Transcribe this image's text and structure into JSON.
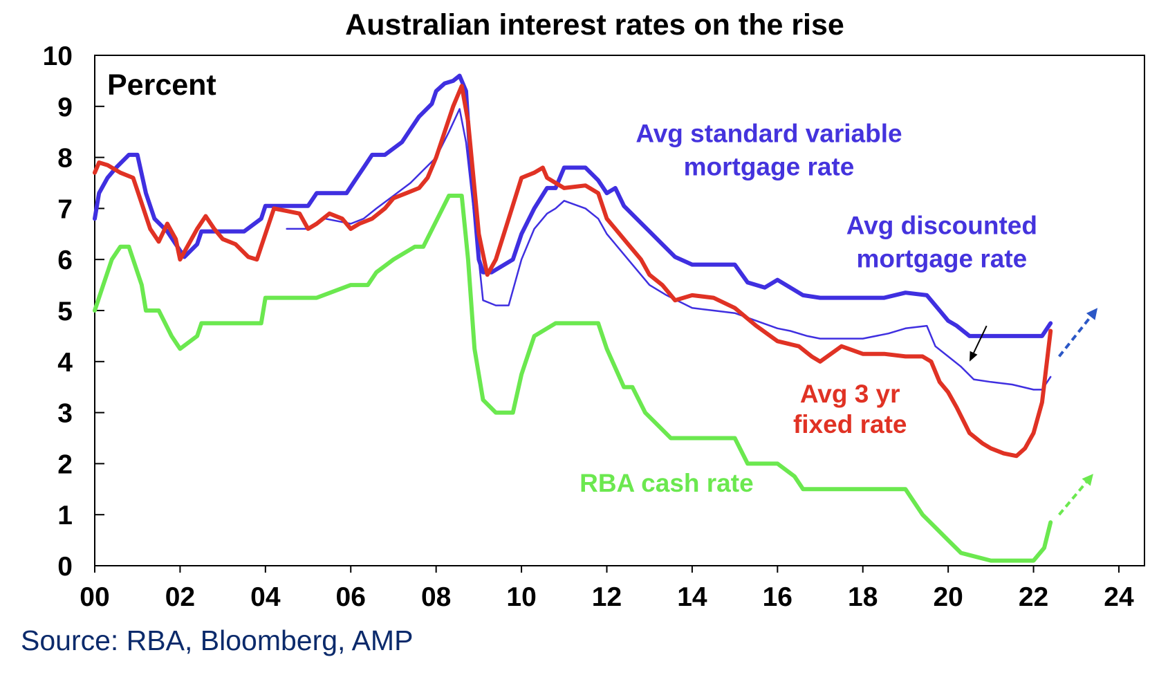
{
  "chart_data": {
    "type": "line",
    "title": "Australian interest rates on the rise",
    "ylabel": "Percent",
    "xlabel": "",
    "xlim": [
      2000,
      2024.6
    ],
    "ylim": [
      0,
      10
    ],
    "x_ticks": [
      2000,
      2002,
      2004,
      2006,
      2008,
      2010,
      2012,
      2014,
      2016,
      2018,
      2020,
      2022,
      2024
    ],
    "x_tick_labels": [
      "00",
      "02",
      "04",
      "06",
      "08",
      "10",
      "12",
      "14",
      "16",
      "18",
      "20",
      "22",
      "24"
    ],
    "y_ticks": [
      0,
      1,
      2,
      3,
      4,
      5,
      6,
      7,
      8,
      9,
      10
    ],
    "y_tick_labels": [
      "0",
      "1",
      "2",
      "3",
      "4",
      "5",
      "6",
      "7",
      "8",
      "9",
      "10"
    ],
    "grid": false,
    "series": [
      {
        "name": "Avg standard variable mortgage rate",
        "color": "#3f2fe0",
        "width": 6,
        "x": [
          2000.0,
          2000.1,
          2000.3,
          2000.5,
          2000.8,
          2001.0,
          2001.2,
          2001.4,
          2001.7,
          2001.9,
          2002.1,
          2002.4,
          2002.5,
          2002.7,
          2003.5,
          2003.9,
          2004.0,
          2005.0,
          2005.2,
          2005.9,
          2006.1,
          2006.3,
          2006.5,
          2006.8,
          2007.2,
          2007.4,
          2007.6,
          2007.9,
          2008.0,
          2008.2,
          2008.4,
          2008.55,
          2008.7,
          2008.8,
          2009.0,
          2009.1,
          2009.3,
          2009.8,
          2010.0,
          2010.3,
          2010.6,
          2010.8,
          2011.0,
          2011.5,
          2011.8,
          2012.0,
          2012.2,
          2012.4,
          2012.7,
          2013.0,
          2013.3,
          2013.6,
          2014.0,
          2014.5,
          2015.0,
          2015.3,
          2015.7,
          2016.0,
          2016.3,
          2016.6,
          2017.0,
          2017.5,
          2018.0,
          2018.5,
          2019.0,
          2019.5,
          2019.8,
          2020.0,
          2020.2,
          2020.5,
          2021.0,
          2021.5,
          2022.0,
          2022.2,
          2022.4
        ],
        "y": [
          6.8,
          7.3,
          7.6,
          7.8,
          8.05,
          8.05,
          7.3,
          6.8,
          6.55,
          6.3,
          6.05,
          6.3,
          6.55,
          6.55,
          6.55,
          6.8,
          7.05,
          7.05,
          7.3,
          7.3,
          7.55,
          7.8,
          8.05,
          8.05,
          8.3,
          8.55,
          8.8,
          9.05,
          9.3,
          9.45,
          9.5,
          9.6,
          9.3,
          8.0,
          6.0,
          5.75,
          5.75,
          6.0,
          6.5,
          7.0,
          7.4,
          7.4,
          7.8,
          7.8,
          7.55,
          7.3,
          7.4,
          7.05,
          6.8,
          6.55,
          6.3,
          6.05,
          5.9,
          5.9,
          5.9,
          5.55,
          5.45,
          5.6,
          5.45,
          5.3,
          5.25,
          5.25,
          5.25,
          5.25,
          5.35,
          5.3,
          5.0,
          4.8,
          4.7,
          4.5,
          4.5,
          4.5,
          4.5,
          4.5,
          4.75
        ]
      },
      {
        "name": "Avg discounted mortgage rate",
        "color": "#3f2fe0",
        "width": 2.5,
        "x": [
          2004.5,
          2005.0,
          2005.4,
          2006.0,
          2006.3,
          2006.6,
          2007.0,
          2007.4,
          2007.7,
          2008.0,
          2008.3,
          2008.55,
          2008.7,
          2008.9,
          2009.1,
          2009.4,
          2009.7,
          2010.0,
          2010.3,
          2010.6,
          2010.8,
          2011.0,
          2011.5,
          2011.8,
          2012.0,
          2012.3,
          2012.6,
          2013.0,
          2013.4,
          2014.0,
          2014.5,
          2015.0,
          2015.5,
          2016.0,
          2016.3,
          2016.7,
          2017.0,
          2018.0,
          2018.6,
          2019.0,
          2019.5,
          2019.7,
          2020.0,
          2020.3,
          2020.6,
          2021.0,
          2021.5,
          2022.0,
          2022.2,
          2022.4
        ],
        "y": [
          6.6,
          6.6,
          6.8,
          6.7,
          6.8,
          7.0,
          7.25,
          7.5,
          7.75,
          8.0,
          8.5,
          8.95,
          8.3,
          6.8,
          5.2,
          5.1,
          5.1,
          6.0,
          6.6,
          6.9,
          7.0,
          7.15,
          7.0,
          6.8,
          6.5,
          6.2,
          5.9,
          5.5,
          5.3,
          5.05,
          5.0,
          4.95,
          4.8,
          4.65,
          4.6,
          4.5,
          4.45,
          4.45,
          4.55,
          4.65,
          4.7,
          4.3,
          4.1,
          3.9,
          3.65,
          3.6,
          3.55,
          3.45,
          3.45,
          3.7
        ]
      },
      {
        "name": "Avg 3 yr fixed rate",
        "color": "#e03224",
        "width": 6,
        "x": [
          2000.0,
          2000.1,
          2000.3,
          2000.6,
          2000.9,
          2001.1,
          2001.3,
          2001.5,
          2001.7,
          2001.9,
          2002.0,
          2002.2,
          2002.4,
          2002.6,
          2002.8,
          2003.0,
          2003.3,
          2003.6,
          2003.8,
          2004.0,
          2004.2,
          2004.5,
          2004.8,
          2005.0,
          2005.2,
          2005.5,
          2005.8,
          2006.0,
          2006.2,
          2006.5,
          2006.8,
          2007.0,
          2007.3,
          2007.6,
          2007.8,
          2008.0,
          2008.2,
          2008.4,
          2008.5,
          2008.6,
          2008.75,
          2009.0,
          2009.2,
          2009.4,
          2009.7,
          2010.0,
          2010.3,
          2010.5,
          2010.6,
          2010.8,
          2011.0,
          2011.5,
          2011.8,
          2012.0,
          2012.3,
          2012.5,
          2012.8,
          2013.0,
          2013.3,
          2013.6,
          2014.0,
          2014.5,
          2015.0,
          2015.5,
          2016.0,
          2016.5,
          2016.8,
          2017.0,
          2017.5,
          2018.0,
          2018.5,
          2019.0,
          2019.4,
          2019.6,
          2019.8,
          2020.0,
          2020.2,
          2020.5,
          2020.8,
          2021.0,
          2021.3,
          2021.6,
          2021.8,
          2022.0,
          2022.2,
          2022.4
        ],
        "y": [
          7.7,
          7.9,
          7.85,
          7.7,
          7.6,
          7.1,
          6.6,
          6.35,
          6.7,
          6.4,
          6.0,
          6.3,
          6.6,
          6.85,
          6.6,
          6.4,
          6.3,
          6.05,
          6.0,
          6.5,
          7.0,
          6.95,
          6.9,
          6.6,
          6.7,
          6.9,
          6.8,
          6.6,
          6.7,
          6.8,
          7.0,
          7.2,
          7.3,
          7.4,
          7.6,
          8.0,
          8.5,
          9.0,
          9.2,
          9.4,
          8.7,
          6.5,
          5.7,
          6.0,
          6.8,
          7.6,
          7.7,
          7.8,
          7.6,
          7.5,
          7.4,
          7.45,
          7.3,
          6.8,
          6.5,
          6.3,
          6.0,
          5.7,
          5.5,
          5.2,
          5.3,
          5.25,
          5.05,
          4.7,
          4.4,
          4.3,
          4.1,
          4.0,
          4.3,
          4.15,
          4.15,
          4.1,
          4.1,
          4.0,
          3.6,
          3.4,
          3.1,
          2.6,
          2.4,
          2.3,
          2.2,
          2.15,
          2.3,
          2.6,
          3.2,
          4.6
        ]
      },
      {
        "name": "RBA cash rate",
        "color": "#6be84f",
        "width": 6,
        "x": [
          2000.0,
          2000.2,
          2000.4,
          2000.6,
          2000.8,
          2001.1,
          2001.2,
          2001.5,
          2001.8,
          2002.0,
          2002.4,
          2002.5,
          2003.5,
          2003.9,
          2004.0,
          2005.2,
          2006.0,
          2006.4,
          2006.6,
          2007.0,
          2007.5,
          2007.7,
          2008.0,
          2008.3,
          2008.6,
          2008.75,
          2008.9,
          2009.1,
          2009.4,
          2009.8,
          2010.0,
          2010.3,
          2010.8,
          2011.0,
          2011.8,
          2012.0,
          2012.4,
          2012.6,
          2012.9,
          2013.2,
          2013.5,
          2014.0,
          2015.0,
          2015.3,
          2016.0,
          2016.4,
          2016.6,
          2017.0,
          2019.0,
          2019.4,
          2019.7,
          2020.0,
          2020.3,
          2021.0,
          2022.0,
          2022.25,
          2022.4
        ],
        "y": [
          5.0,
          5.5,
          6.0,
          6.25,
          6.25,
          5.5,
          5.0,
          5.0,
          4.5,
          4.25,
          4.5,
          4.75,
          4.75,
          4.75,
          5.25,
          5.25,
          5.5,
          5.5,
          5.75,
          6.0,
          6.25,
          6.25,
          6.75,
          7.25,
          7.25,
          6.0,
          4.25,
          3.25,
          3.0,
          3.0,
          3.75,
          4.5,
          4.75,
          4.75,
          4.75,
          4.25,
          3.5,
          3.5,
          3.0,
          2.75,
          2.5,
          2.5,
          2.5,
          2.0,
          2.0,
          1.75,
          1.5,
          1.5,
          1.5,
          1.0,
          0.75,
          0.5,
          0.25,
          0.1,
          0.1,
          0.35,
          0.85
        ]
      }
    ],
    "trend_arrows": [
      {
        "name": "variable-rate-rise-arrow",
        "color": "#2b57c6",
        "from": [
          2022.6,
          4.1
        ],
        "to": [
          2023.5,
          5.05
        ]
      },
      {
        "name": "cash-rate-rise-arrow",
        "color": "#6be84f",
        "from": [
          2022.6,
          1.0
        ],
        "to": [
          2023.4,
          1.8
        ]
      }
    ],
    "pointer_arrow": {
      "from": [
        2020.9,
        4.7
      ],
      "to": [
        2020.5,
        4.0
      ]
    },
    "annotations": [
      {
        "name": "annotation-standard-variable",
        "lines": [
          "Avg standard variable",
          "mortgage rate"
        ],
        "color": "#4433dd",
        "x": 2015.8,
        "y": [
          8.3,
          7.65
        ]
      },
      {
        "name": "annotation-discounted",
        "lines": [
          "Avg discounted",
          "mortgage rate"
        ],
        "color": "#4433dd",
        "x": 2019.85,
        "y": [
          6.5,
          5.85
        ]
      },
      {
        "name": "annotation-fixed",
        "lines": [
          "Avg 3 yr",
          "fixed rate"
        ],
        "color": "#e03224",
        "x": 2017.7,
        "y": [
          3.2,
          2.6
        ]
      },
      {
        "name": "annotation-cash-rate",
        "lines": [
          "RBA cash rate"
        ],
        "color": "#6be84f",
        "x": 2013.4,
        "y": [
          1.45
        ]
      }
    ]
  },
  "source_text": "Source: RBA, Bloomberg, AMP"
}
